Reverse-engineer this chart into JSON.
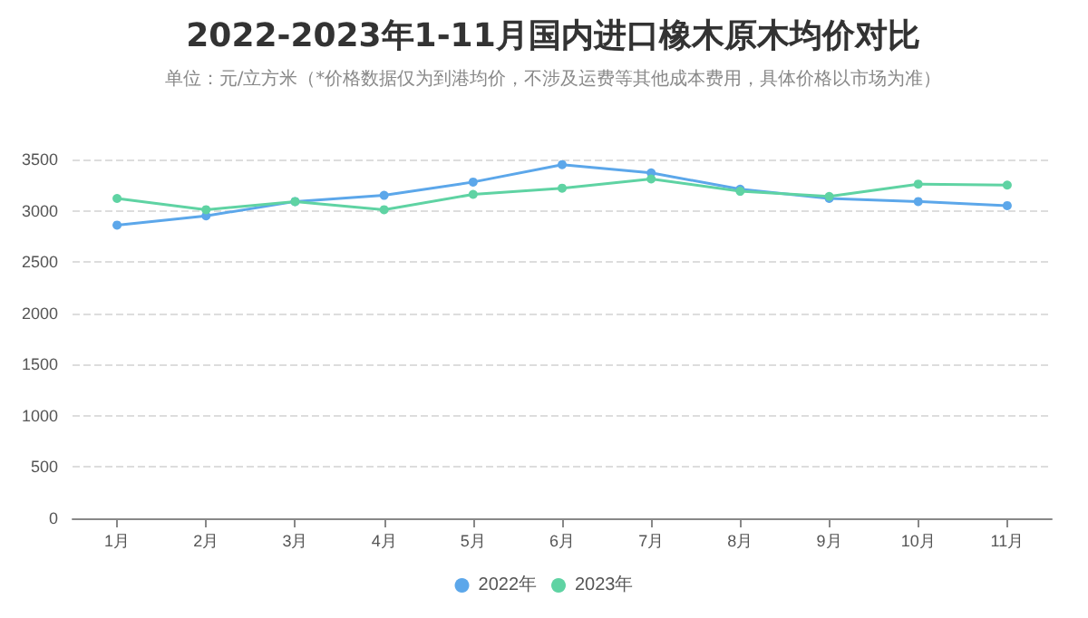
{
  "chart_data": {
    "type": "line",
    "title": "2022-2023年1-11月国内进口橡木原木均价对比",
    "subtitle": "单位：元/立方米（*价格数据仅为到港均价，不涉及运费等其他成本费用，具体价格以市场为准）",
    "categories": [
      "1月",
      "2月",
      "3月",
      "4月",
      "5月",
      "6月",
      "7月",
      "8月",
      "9月",
      "10月",
      "11月"
    ],
    "series": [
      {
        "name": "2022年",
        "color": "#5ca7ea",
        "values": [
          2860,
          2950,
          3090,
          3150,
          3280,
          3450,
          3370,
          3210,
          3120,
          3090,
          3050
        ]
      },
      {
        "name": "2023年",
        "color": "#5fd3a3",
        "values": [
          3120,
          3010,
          3090,
          3010,
          3160,
          3220,
          3310,
          3190,
          3140,
          3260,
          3250
        ]
      }
    ],
    "ylim": [
      0,
      3500
    ],
    "yticks": [
      0,
      500,
      1000,
      1500,
      2000,
      2500,
      3000,
      3500
    ],
    "grid": "y",
    "legend": "bottom",
    "marker": "circle",
    "line_style": "solid"
  }
}
